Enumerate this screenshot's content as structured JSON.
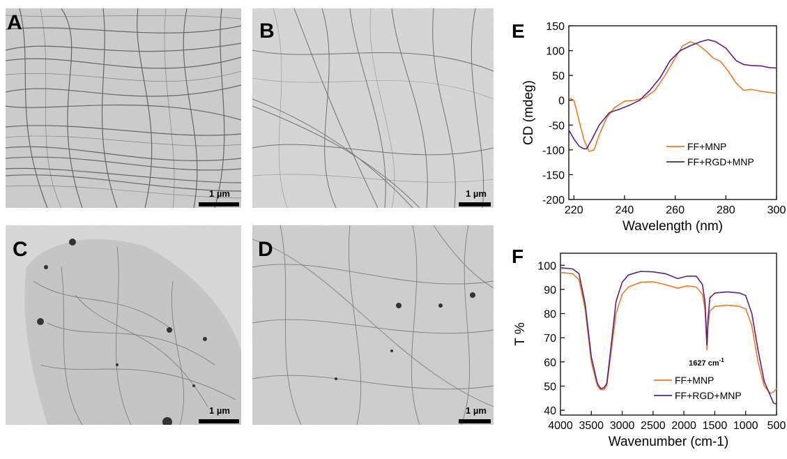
{
  "micrographs": [
    {
      "label": "A",
      "scale_bar": "1 µm",
      "tone": "#cfcfcf"
    },
    {
      "label": "B",
      "scale_bar": "1 µm",
      "tone": "#d6d6d6"
    },
    {
      "label": "C",
      "scale_bar": "1 µm",
      "tone": "#d9d9d9"
    },
    {
      "label": "D",
      "scale_bar": "1 µm",
      "tone": "#d2d2d2"
    }
  ],
  "chart_data": [
    {
      "panel": "E",
      "type": "line",
      "xlabel": "Wavelength (nm)",
      "ylabel": "CD (mdeg)",
      "xlim": [
        218,
        300
      ],
      "ylim": [
        -200,
        150
      ],
      "xticks": [
        220,
        240,
        260,
        280,
        300
      ],
      "yticks": [
        -200,
        -150,
        -100,
        -50,
        0,
        50,
        100,
        150
      ],
      "legend_position": "lower-right",
      "series": [
        {
          "name": "FF+MNP",
          "color": "#f07820",
          "x": [
            218,
            220,
            222,
            224,
            226,
            228,
            230,
            233,
            236,
            240,
            244,
            248,
            252,
            256,
            260,
            263,
            266,
            269,
            272,
            275,
            278,
            281,
            284,
            287,
            290,
            294,
            297,
            300
          ],
          "y": [
            5,
            0,
            -40,
            -80,
            -103,
            -100,
            -70,
            -35,
            -15,
            -2,
            0,
            5,
            20,
            50,
            85,
            110,
            118,
            112,
            100,
            85,
            78,
            58,
            35,
            20,
            22,
            18,
            16,
            14
          ]
        },
        {
          "name": "FF+RGD+MNP",
          "color": "#5a1e8c",
          "x": [
            218,
            220,
            222,
            224,
            225,
            227,
            230,
            234,
            238,
            242,
            246,
            250,
            254,
            258,
            262,
            266,
            270,
            273,
            276,
            280,
            284,
            287,
            290,
            294,
            297,
            300
          ],
          "y": [
            -60,
            -78,
            -92,
            -98,
            -98,
            -80,
            -50,
            -25,
            -18,
            -10,
            0,
            20,
            45,
            80,
            100,
            110,
            118,
            122,
            118,
            105,
            80,
            72,
            70,
            69,
            66,
            65
          ]
        }
      ]
    },
    {
      "panel": "F",
      "type": "line",
      "xlabel": "Wavenumber (cm-1)",
      "ylabel": "T %",
      "xlim": [
        4000,
        500
      ],
      "ylim": [
        38,
        105
      ],
      "xticks": [
        4000,
        3500,
        3000,
        2500,
        2000,
        1500,
        1000,
        500
      ],
      "yticks": [
        40,
        50,
        60,
        70,
        80,
        90,
        100
      ],
      "annotation": "1627 cm",
      "annotation_sup": "-1",
      "annotation_at": [
        1627,
        60
      ],
      "legend_position": "lower-right",
      "series": [
        {
          "name": "FF+MNP",
          "color": "#f07820",
          "x": [
            4000,
            3800,
            3700,
            3600,
            3500,
            3400,
            3350,
            3300,
            3250,
            3200,
            3100,
            3000,
            2900,
            2700,
            2500,
            2300,
            2100,
            1950,
            1800,
            1700,
            1660,
            1640,
            1627,
            1610,
            1580,
            1500,
            1300,
            1100,
            1000,
            900,
            800,
            700,
            600,
            550,
            500
          ],
          "y": [
            97,
            96.5,
            94,
            82,
            60,
            50,
            48.5,
            48.5,
            50,
            60,
            80,
            88,
            91,
            93,
            93.2,
            92,
            90.5,
            91.5,
            91,
            88,
            82,
            72,
            65,
            75,
            81,
            83,
            83.5,
            83,
            82,
            75,
            60,
            50,
            47,
            47.5,
            49
          ]
        },
        {
          "name": "FF+RGD+MNP",
          "color": "#5a1e8c",
          "x": [
            4000,
            3800,
            3700,
            3600,
            3500,
            3400,
            3350,
            3300,
            3250,
            3200,
            3100,
            3000,
            2900,
            2700,
            2500,
            2300,
            2100,
            1950,
            1800,
            1700,
            1660,
            1640,
            1627,
            1610,
            1580,
            1500,
            1300,
            1100,
            1000,
            900,
            800,
            700,
            600,
            550,
            500
          ],
          "y": [
            99,
            98.5,
            96.5,
            84,
            62,
            51,
            49,
            49.2,
            51,
            62,
            85,
            93,
            96,
            97.5,
            97.3,
            96.5,
            94.5,
            95.5,
            95.5,
            92,
            85,
            75,
            67,
            78,
            86.5,
            88.5,
            89,
            88.5,
            87.5,
            80,
            65,
            52,
            46,
            43,
            42.5
          ]
        }
      ]
    }
  ]
}
